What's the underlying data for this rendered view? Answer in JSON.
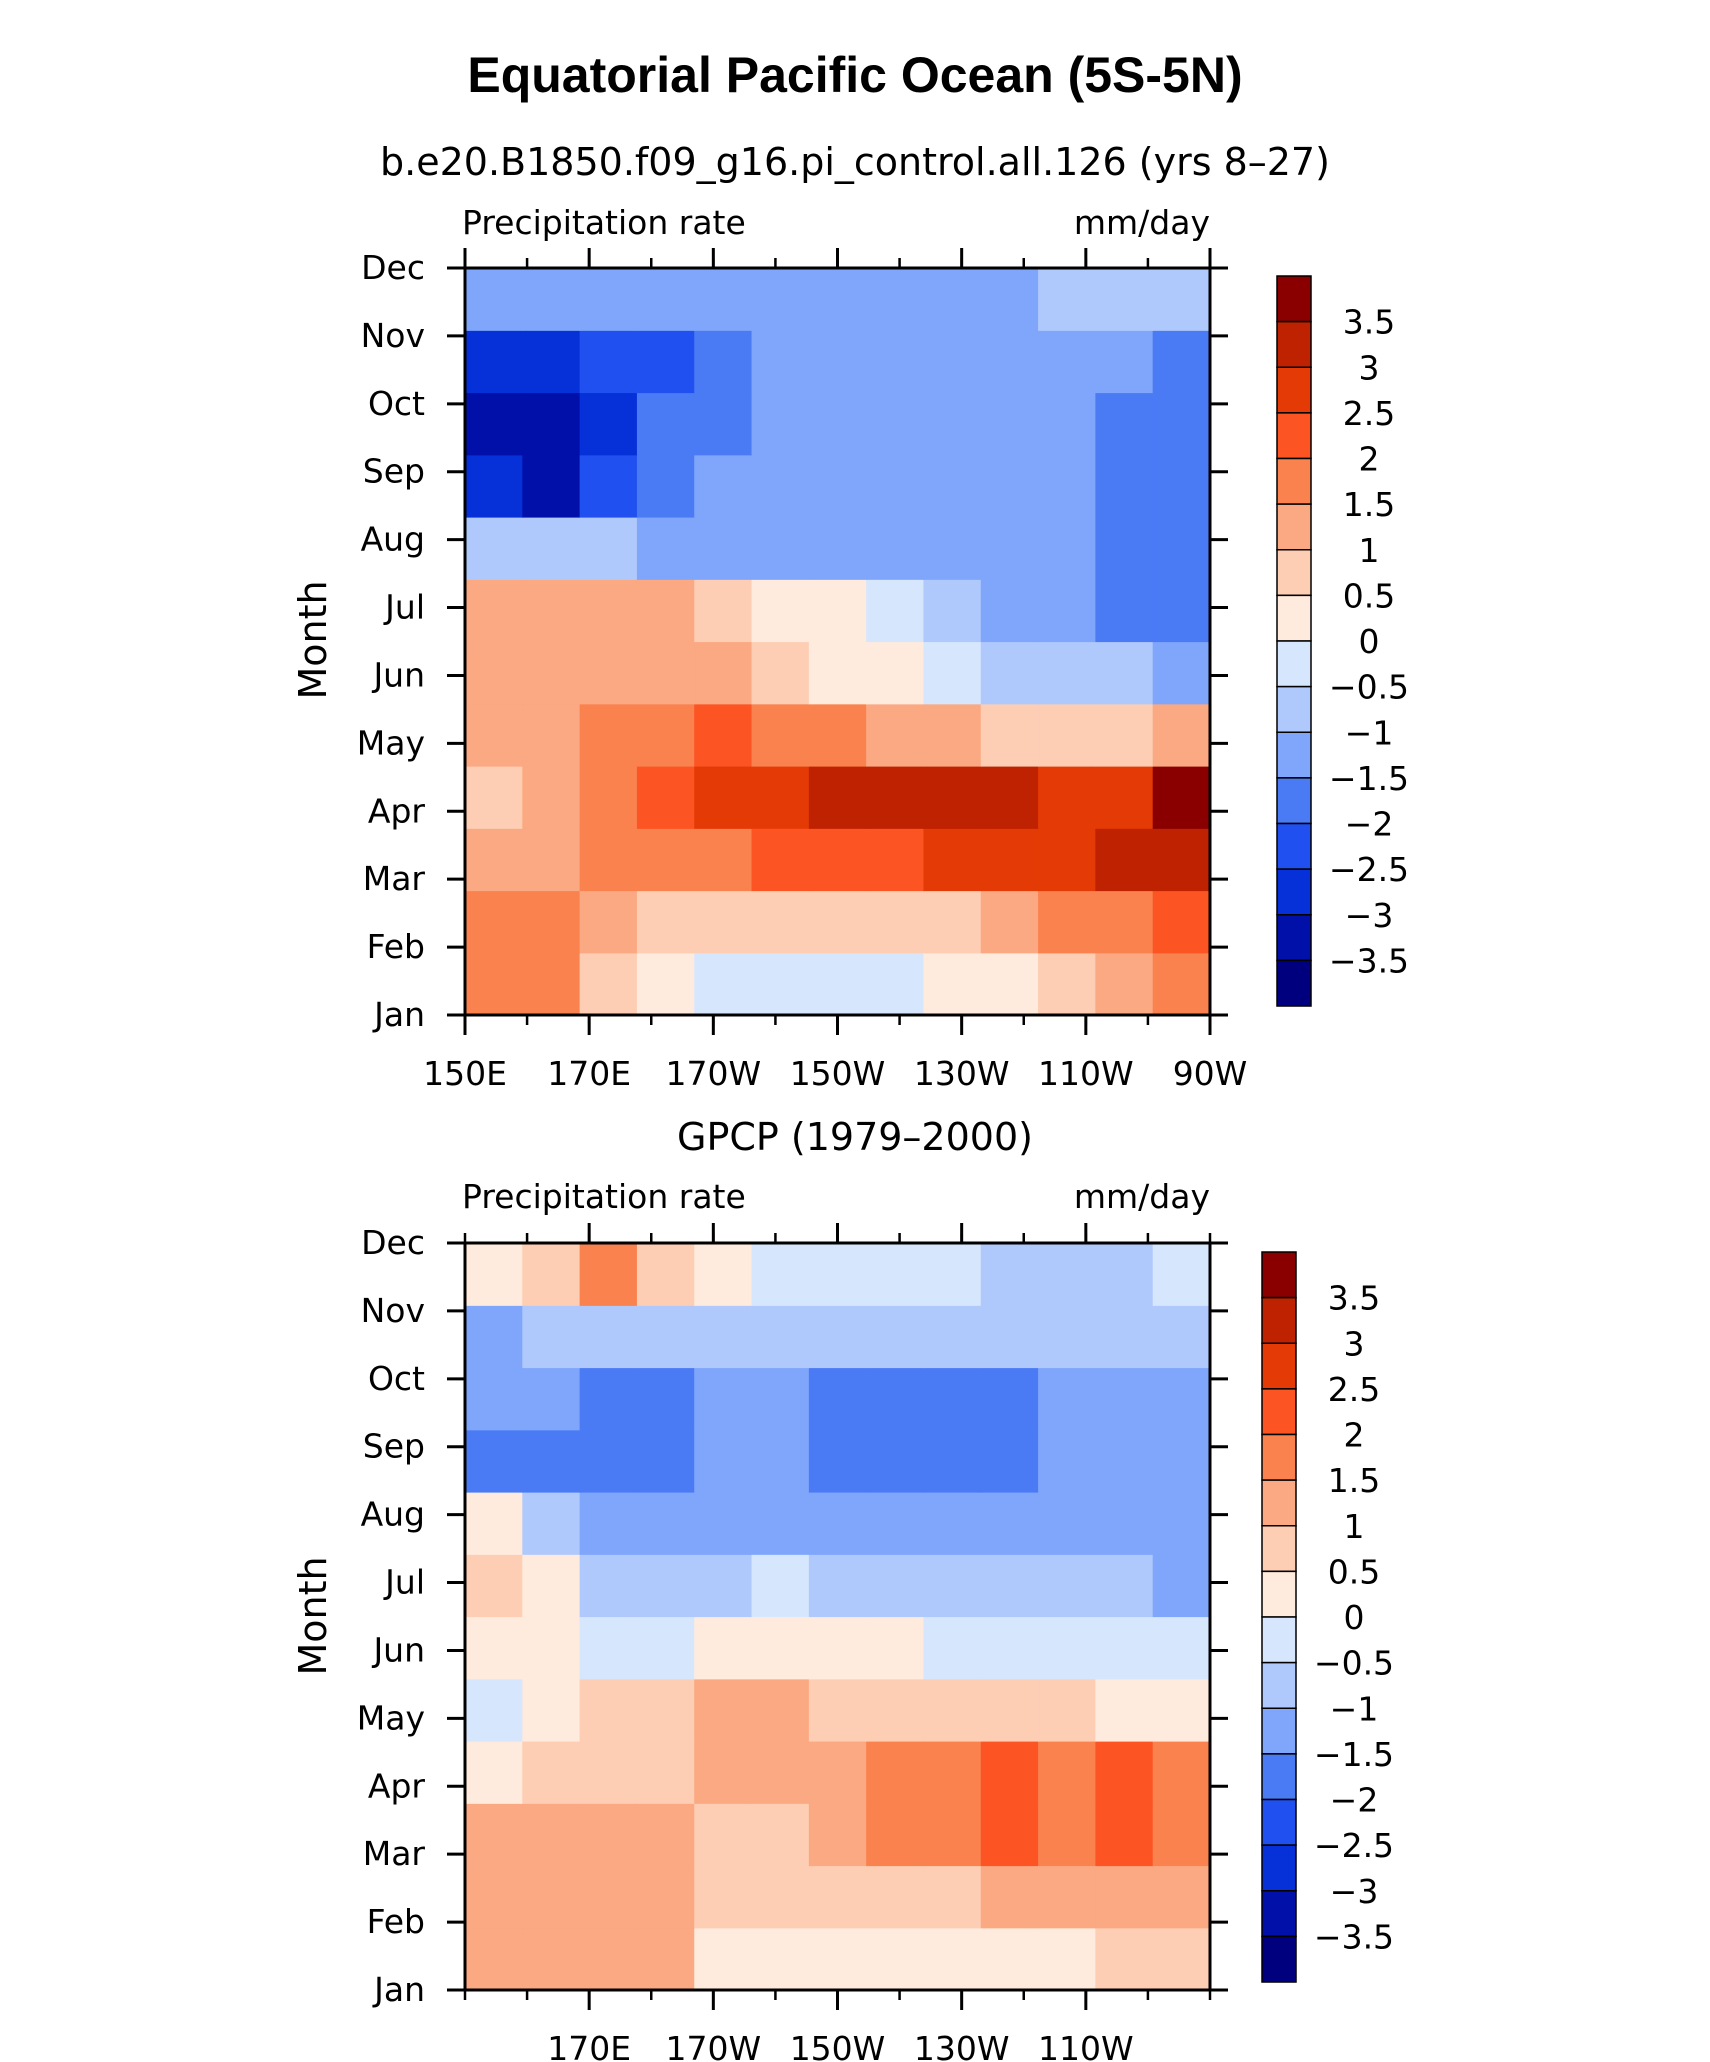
{
  "title": "Equatorial Pacific Ocean (5S-5N)",
  "colors": [
    "#00007F",
    "#0010A8",
    "#0630D8",
    "#2050F0",
    "#4A7BF5",
    "#7FA6FA",
    "#B0C9FC",
    "#D6E6FD",
    "#FFEBDD",
    "#FDCDB4",
    "#FBA982",
    "#F9824F",
    "#FC5422",
    "#E43A05",
    "#BE2200",
    "#8A0000"
  ],
  "colorbar_levels": [
    "3.5",
    "3",
    "2.5",
    "2",
    "1.5",
    "1",
    "0.5",
    "0",
    "−0.5",
    "−1",
    "−1.5",
    "−2",
    "−2.5",
    "−3",
    "−3.5"
  ],
  "panels": [
    {
      "subtitle": "b.e20.B1850.f09_g16.pi_control.all.126 (yrs 8–27)",
      "left_label": "Precipitation rate",
      "right_label": "mm/day",
      "ylabel": "Month",
      "yticks": [
        "Jan",
        "Feb",
        "Mar",
        "Apr",
        "May",
        "Jun",
        "Jul",
        "Aug",
        "Sep",
        "Oct",
        "Nov",
        "Dec"
      ],
      "xticks": [
        "150E",
        "170E",
        "170W",
        "150W",
        "130W",
        "110W",
        "90W"
      ]
    },
    {
      "subtitle": "GPCP (1979–2000)",
      "left_label": "Precipitation rate",
      "right_label": "mm/day",
      "ylabel": "Month",
      "yticks": [
        "Jan",
        "Feb",
        "Mar",
        "Apr",
        "May",
        "Jun",
        "Jul",
        "Aug",
        "Sep",
        "Oct",
        "Nov",
        "Dec"
      ],
      "xticks": [
        "170E",
        "170W",
        "150W",
        "130W",
        "110W"
      ]
    }
  ],
  "chart_data": [
    {
      "type": "heatmap",
      "title": "b.e20.B1850.f09_g16.pi_control.all.126 (yrs 8–27)",
      "xlabel": "",
      "ylabel": "Month",
      "units": "mm/day",
      "x": [
        "150E",
        "160E",
        "170E",
        "180",
        "170W",
        "160W",
        "150W",
        "140W",
        "130W",
        "120W",
        "110W",
        "100W",
        "90W"
      ],
      "y": [
        "Jan",
        "Feb",
        "Mar",
        "Apr",
        "May",
        "Jun",
        "Jul",
        "Aug",
        "Sep",
        "Oct",
        "Nov",
        "Dec"
      ],
      "values": [
        [
          1.7,
          1.5,
          0.6,
          0.2,
          -0.2,
          -0.3,
          -0.3,
          -0.2,
          0.0,
          0.4,
          0.8,
          1.2,
          1.7
        ],
        [
          1.8,
          1.6,
          1.0,
          0.6,
          0.5,
          0.5,
          0.5,
          0.7,
          0.9,
          1.2,
          1.5,
          1.8,
          2.1
        ],
        [
          1.0,
          1.3,
          1.5,
          1.6,
          1.9,
          2.0,
          2.2,
          2.4,
          2.6,
          2.8,
          2.9,
          3.0,
          3.4
        ],
        [
          0.8,
          1.1,
          1.8,
          2.3,
          2.7,
          2.9,
          3.1,
          3.2,
          3.1,
          3.0,
          2.8,
          2.9,
          3.6
        ],
        [
          1.2,
          1.2,
          1.6,
          1.9,
          2.0,
          1.9,
          1.6,
          1.3,
          1.1,
          0.9,
          0.8,
          0.9,
          1.0
        ],
        [
          1.3,
          1.4,
          1.3,
          1.4,
          1.0,
          0.7,
          0.4,
          0.1,
          -0.4,
          -0.8,
          -1.0,
          -1.0,
          -1.1
        ],
        [
          1.2,
          1.4,
          1.1,
          1.1,
          0.7,
          0.4,
          0.1,
          -0.3,
          -0.7,
          -1.1,
          -1.4,
          -1.6,
          -1.8
        ],
        [
          -0.8,
          -0.9,
          -1.0,
          -1.1,
          -1.2,
          -1.3,
          -1.3,
          -1.3,
          -1.3,
          -1.4,
          -1.5,
          -1.6,
          -1.9
        ],
        [
          -3.0,
          -3.1,
          -2.5,
          -2.0,
          -1.5,
          -1.3,
          -1.3,
          -1.3,
          -1.3,
          -1.4,
          -1.5,
          -1.6,
          -1.9
        ],
        [
          -3.1,
          -3.2,
          -2.6,
          -2.0,
          -1.6,
          -1.3,
          -1.3,
          -1.3,
          -1.3,
          -1.4,
          -1.5,
          -1.6,
          -1.9
        ],
        [
          -2.9,
          -3.0,
          -2.5,
          -2.1,
          -1.8,
          -1.3,
          -1.2,
          -1.2,
          -1.2,
          -1.2,
          -1.3,
          -1.4,
          -1.7
        ],
        [
          -1.4,
          -1.5,
          -1.5,
          -1.5,
          -1.4,
          -1.2,
          -1.2,
          -1.2,
          -1.2,
          -1.1,
          -0.9,
          -0.8,
          -0.8
        ]
      ],
      "colorbar_range": [
        -4,
        4
      ]
    },
    {
      "type": "heatmap",
      "title": "GPCP (1979–2000)",
      "xlabel": "",
      "ylabel": "Month",
      "units": "mm/day",
      "x": [
        "150E",
        "160E",
        "170E",
        "180",
        "170W",
        "160W",
        "150W",
        "140W",
        "130W",
        "120W",
        "110W",
        "100W",
        "90W"
      ],
      "y": [
        "Jan",
        "Feb",
        "Mar",
        "Apr",
        "May",
        "Jun",
        "Jul",
        "Aug",
        "Sep",
        "Oct",
        "Nov",
        "Dec"
      ],
      "values": [
        [
          1.0,
          1.2,
          1.3,
          1.3,
          0.1,
          0.1,
          0.2,
          0.2,
          0.1,
          0.1,
          0.3,
          0.5,
          0.7
        ],
        [
          1.3,
          1.1,
          1.2,
          1.2,
          0.5,
          0.5,
          0.7,
          0.9,
          0.9,
          1.1,
          1.2,
          1.3,
          1.4
        ],
        [
          1.2,
          1.3,
          1.3,
          1.2,
          0.8,
          0.9,
          1.3,
          1.6,
          1.8,
          2.1,
          1.8,
          2.0,
          1.7
        ],
        [
          0.3,
          0.9,
          0.8,
          0.7,
          1.1,
          1.1,
          1.4,
          1.6,
          1.8,
          2.1,
          1.7,
          2.0,
          1.6
        ],
        [
          -0.2,
          0.3,
          0.5,
          0.7,
          1.0,
          1.0,
          0.9,
          0.8,
          0.7,
          0.6,
          0.5,
          0.4,
          0.3
        ],
        [
          0.4,
          0.3,
          -0.3,
          -0.5,
          0.2,
          0.4,
          0.2,
          0.1,
          -0.1,
          -0.2,
          -0.3,
          -0.4,
          -0.5
        ],
        [
          0.6,
          0.4,
          -0.6,
          -0.8,
          -0.7,
          -0.5,
          -0.6,
          -0.7,
          -0.8,
          -0.9,
          -0.8,
          -0.9,
          -1.2
        ],
        [
          0.3,
          -0.6,
          -1.1,
          -1.2,
          -1.1,
          -1.1,
          -1.3,
          -1.5,
          -1.4,
          -1.2,
          -1.1,
          -1.2,
          -1.3
        ],
        [
          -1.8,
          -1.6,
          -2.0,
          -1.8,
          -1.2,
          -1.1,
          -1.6,
          -1.7,
          -1.7,
          -1.6,
          -1.2,
          -1.3,
          -1.2
        ],
        [
          -1.3,
          -1.3,
          -1.6,
          -2.0,
          -1.4,
          -1.2,
          -1.6,
          -1.7,
          -1.7,
          -1.6,
          -1.2,
          -1.4,
          -1.3
        ],
        [
          -1.1,
          -1.0,
          -1.0,
          -1.0,
          -1.0,
          -1.0,
          -1.0,
          -0.9,
          -0.8,
          -0.9,
          -0.9,
          -1.0,
          -1.0
        ],
        [
          0.0,
          0.8,
          1.8,
          0.9,
          0.1,
          -0.4,
          -0.5,
          -0.5,
          -0.5,
          -0.7,
          -0.6,
          -0.6,
          -0.5
        ]
      ],
      "colorbar_range": [
        -4,
        4
      ]
    }
  ]
}
